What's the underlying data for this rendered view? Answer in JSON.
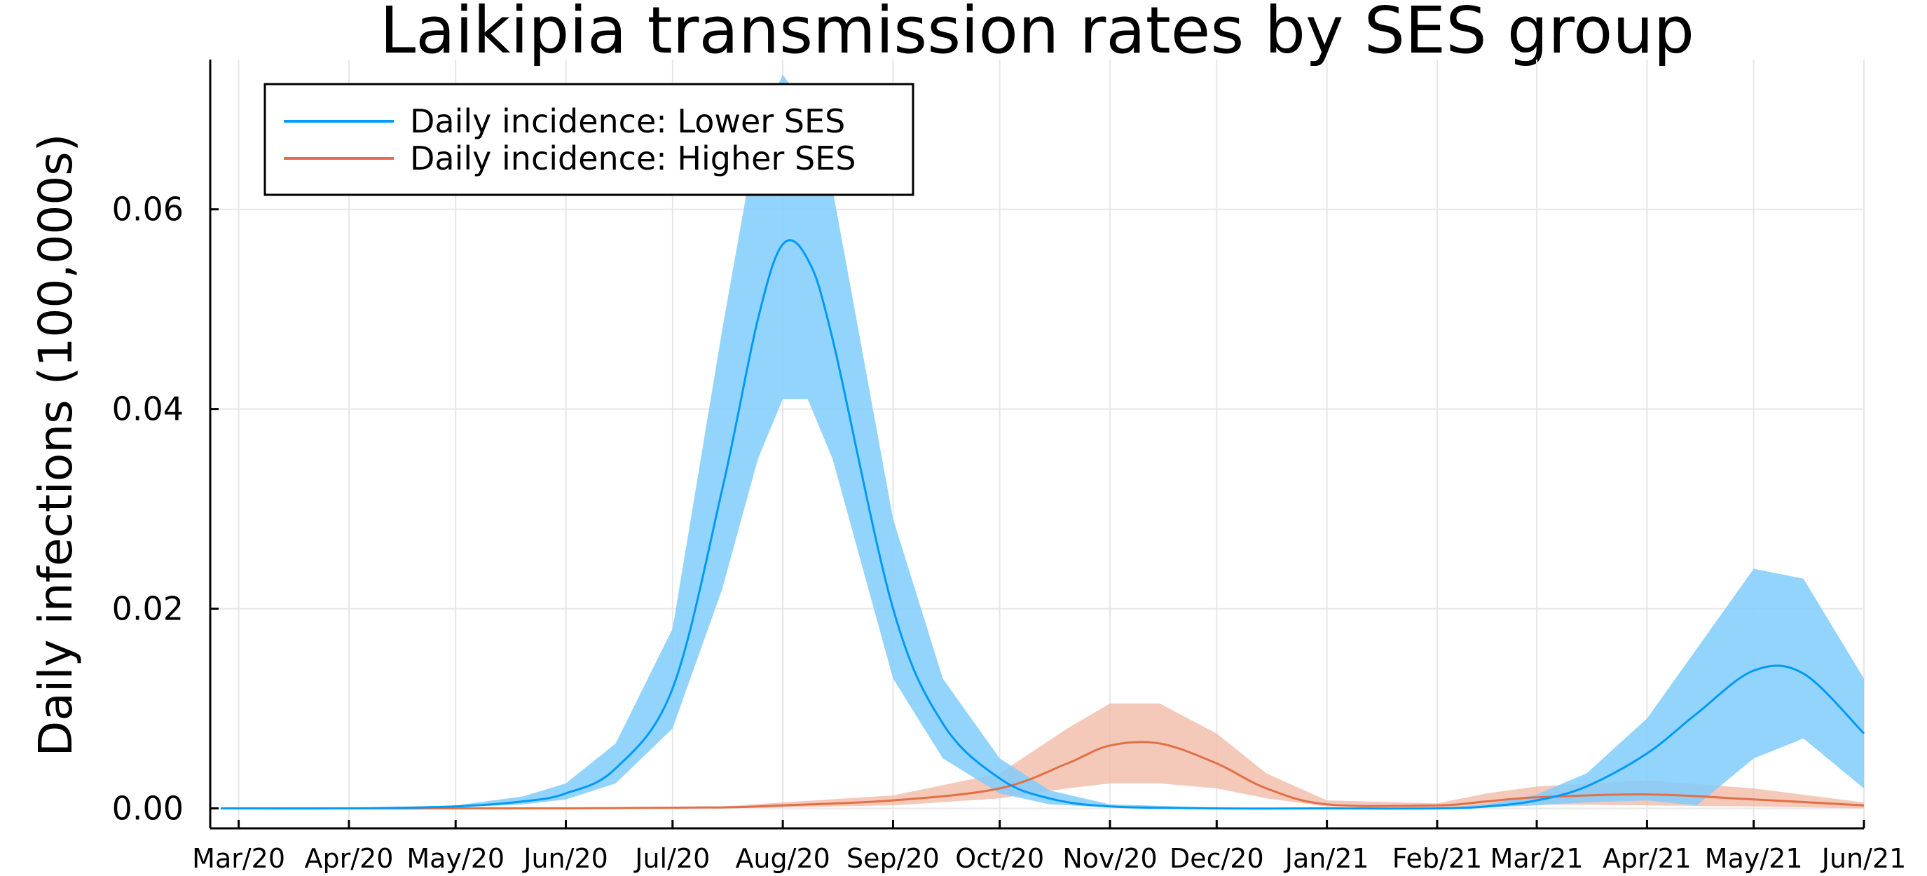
{
  "chart_data": {
    "type": "line",
    "title": "Laikipia transmission rates by SES group",
    "xlabel": "",
    "ylabel": "Daily infections (100,000s)",
    "x_tick_labels": [
      "Mar/20",
      "Apr/20",
      "May/20",
      "Jun/20",
      "Jul/20",
      "Aug/20",
      "Sep/20",
      "Oct/20",
      "Nov/20",
      "Dec/20",
      "Jan/21",
      "Feb/21",
      "Mar/21",
      "Apr/21",
      "May/21",
      "Jun/21"
    ],
    "y_ticks": [
      "0.00",
      "0.02",
      "0.04",
      "0.06"
    ],
    "ylim": [
      -0.002,
      0.075
    ],
    "xlim": [
      "2020-02-22",
      "2021-06-01"
    ],
    "grid": true,
    "legend_position": "top-left",
    "colors": {
      "lower": "#009af9",
      "lower_band": "#80ccfb",
      "higher": "#e26f46",
      "higher_band": "#f0b7a2"
    },
    "series": [
      {
        "name": "Daily incidence: Lower SES",
        "x": [
          "2020-02-25",
          "2020-04-01",
          "2020-05-01",
          "2020-05-20",
          "2020-06-01",
          "2020-06-15",
          "2020-07-01",
          "2020-07-15",
          "2020-07-25",
          "2020-08-01",
          "2020-08-08",
          "2020-08-15",
          "2020-09-01",
          "2020-09-15",
          "2020-10-01",
          "2020-10-15",
          "2020-11-01",
          "2020-12-01",
          "2021-01-01",
          "2021-02-01",
          "2021-02-15",
          "2021-03-01",
          "2021-03-15",
          "2021-04-01",
          "2021-04-15",
          "2021-05-01",
          "2021-05-15",
          "2021-06-01"
        ],
        "y": [
          0.0,
          0.0,
          0.0002,
          0.0007,
          0.0015,
          0.004,
          0.012,
          0.032,
          0.049,
          0.0565,
          0.055,
          0.047,
          0.02,
          0.0085,
          0.003,
          0.001,
          0.0002,
          0.0,
          0.0,
          0.0,
          0.0002,
          0.0008,
          0.0022,
          0.0055,
          0.0095,
          0.0138,
          0.0135,
          0.0075
        ],
        "lower": [
          0.0,
          0.0,
          0.0001,
          0.0004,
          0.0009,
          0.0025,
          0.008,
          0.022,
          0.035,
          0.041,
          0.041,
          0.035,
          0.013,
          0.005,
          0.0015,
          0.0004,
          0.0001,
          0.0,
          0.0,
          0.0,
          0.0001,
          0.0003,
          0.0006,
          0.0008,
          0.0003,
          0.005,
          0.007,
          0.002
        ],
        "upper": [
          0.0,
          0.0,
          0.0003,
          0.0012,
          0.0025,
          0.0065,
          0.018,
          0.048,
          0.068,
          0.0735,
          0.07,
          0.062,
          0.029,
          0.013,
          0.005,
          0.0018,
          0.0004,
          0.0001,
          0.0,
          0.0,
          0.0004,
          0.0014,
          0.0035,
          0.009,
          0.016,
          0.024,
          0.023,
          0.013
        ]
      },
      {
        "name": "Daily incidence: Higher SES",
        "x": [
          "2020-02-25",
          "2020-06-01",
          "2020-07-15",
          "2020-08-01",
          "2020-09-01",
          "2020-10-01",
          "2020-10-20",
          "2020-11-01",
          "2020-11-15",
          "2020-12-01",
          "2020-12-15",
          "2021-01-01",
          "2021-02-01",
          "2021-02-15",
          "2021-03-01",
          "2021-04-01",
          "2021-05-01",
          "2021-06-01"
        ],
        "y": [
          0.0,
          0.0,
          0.0001,
          0.0003,
          0.0008,
          0.002,
          0.0045,
          0.0063,
          0.0065,
          0.0045,
          0.002,
          0.0004,
          0.0003,
          0.0007,
          0.0011,
          0.0014,
          0.0009,
          0.0003
        ],
        "lower": [
          0.0,
          0.0,
          0.0,
          0.0001,
          0.0003,
          0.001,
          0.002,
          0.0025,
          0.0025,
          0.002,
          0.001,
          0.0002,
          0.0001,
          0.0002,
          0.0004,
          0.0003,
          0.0002,
          0.0
        ],
        "upper": [
          0.0,
          0.0,
          0.0002,
          0.0006,
          0.0013,
          0.0035,
          0.008,
          0.0105,
          0.0105,
          0.0075,
          0.0035,
          0.0008,
          0.0005,
          0.0015,
          0.0022,
          0.0028,
          0.002,
          0.0006
        ]
      }
    ]
  }
}
